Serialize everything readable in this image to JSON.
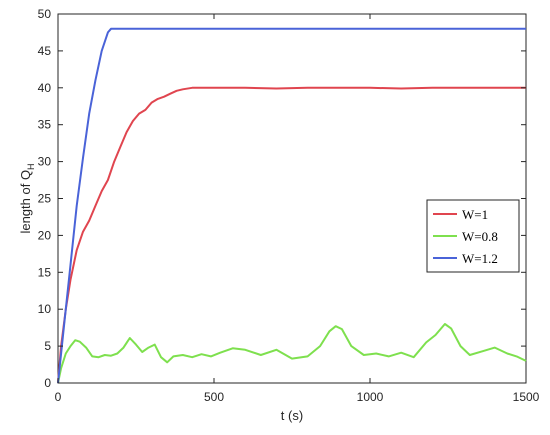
{
  "chart_data": {
    "type": "line",
    "title": "",
    "xlabel": "t (s)",
    "ylabel_main": "length of Q",
    "ylabel_sub": "H",
    "xlim": [
      0,
      1500
    ],
    "ylim": [
      0,
      50
    ],
    "xticks": [
      0,
      500,
      1000,
      1500
    ],
    "yticks": [
      0,
      5,
      10,
      15,
      20,
      25,
      30,
      35,
      40,
      45,
      50
    ],
    "grid": false,
    "legend_position": "right",
    "series": [
      {
        "name": "W=1",
        "color": "#e0454f",
        "x": [
          0,
          10,
          25,
          40,
          60,
          80,
          100,
          120,
          140,
          160,
          180,
          200,
          220,
          240,
          260,
          280,
          300,
          320,
          340,
          360,
          380,
          400,
          430,
          470,
          520,
          600,
          700,
          800,
          900,
          1000,
          1100,
          1200,
          1300,
          1400,
          1500
        ],
        "y": [
          0,
          5,
          10,
          14,
          18,
          20.5,
          22,
          24,
          26,
          27.5,
          30,
          32,
          34,
          35.5,
          36.5,
          37,
          38,
          38.5,
          38.8,
          39.2,
          39.6,
          39.8,
          40,
          40,
          40,
          40,
          39.9,
          40,
          40,
          40,
          39.9,
          40,
          40,
          40,
          40
        ]
      },
      {
        "name": "W=0.8",
        "color": "#7ee04e",
        "x": [
          0,
          10,
          25,
          40,
          55,
          70,
          90,
          110,
          130,
          150,
          170,
          190,
          210,
          230,
          250,
          270,
          290,
          310,
          330,
          350,
          370,
          400,
          430,
          460,
          490,
          520,
          560,
          600,
          650,
          700,
          750,
          800,
          840,
          870,
          890,
          910,
          940,
          980,
          1020,
          1060,
          1100,
          1140,
          1180,
          1210,
          1240,
          1260,
          1290,
          1320,
          1360,
          1400,
          1440,
          1470,
          1500
        ],
        "y": [
          0,
          2,
          4,
          5,
          5.8,
          5.6,
          4.8,
          3.6,
          3.5,
          3.8,
          3.7,
          4.0,
          4.8,
          6.1,
          5.2,
          4.2,
          4.8,
          5.2,
          3.5,
          2.8,
          3.6,
          3.8,
          3.5,
          3.9,
          3.6,
          4.1,
          4.7,
          4.5,
          3.8,
          4.5,
          3.3,
          3.6,
          5.0,
          7.0,
          7.7,
          7.3,
          5.0,
          3.8,
          4.0,
          3.6,
          4.1,
          3.5,
          5.5,
          6.5,
          8.0,
          7.4,
          5.0,
          3.8,
          4.3,
          4.8,
          4.0,
          3.6,
          3.0
        ]
      },
      {
        "name": "W=1.2",
        "color": "#4a63d8",
        "x": [
          0,
          20,
          40,
          60,
          80,
          100,
          120,
          140,
          160,
          170,
          180,
          200,
          300,
          500,
          1000,
          1500
        ],
        "y": [
          0,
          8,
          16,
          24,
          30.5,
          36.5,
          41,
          45,
          47.5,
          48,
          48,
          48,
          48,
          48,
          48,
          48
        ]
      }
    ]
  }
}
